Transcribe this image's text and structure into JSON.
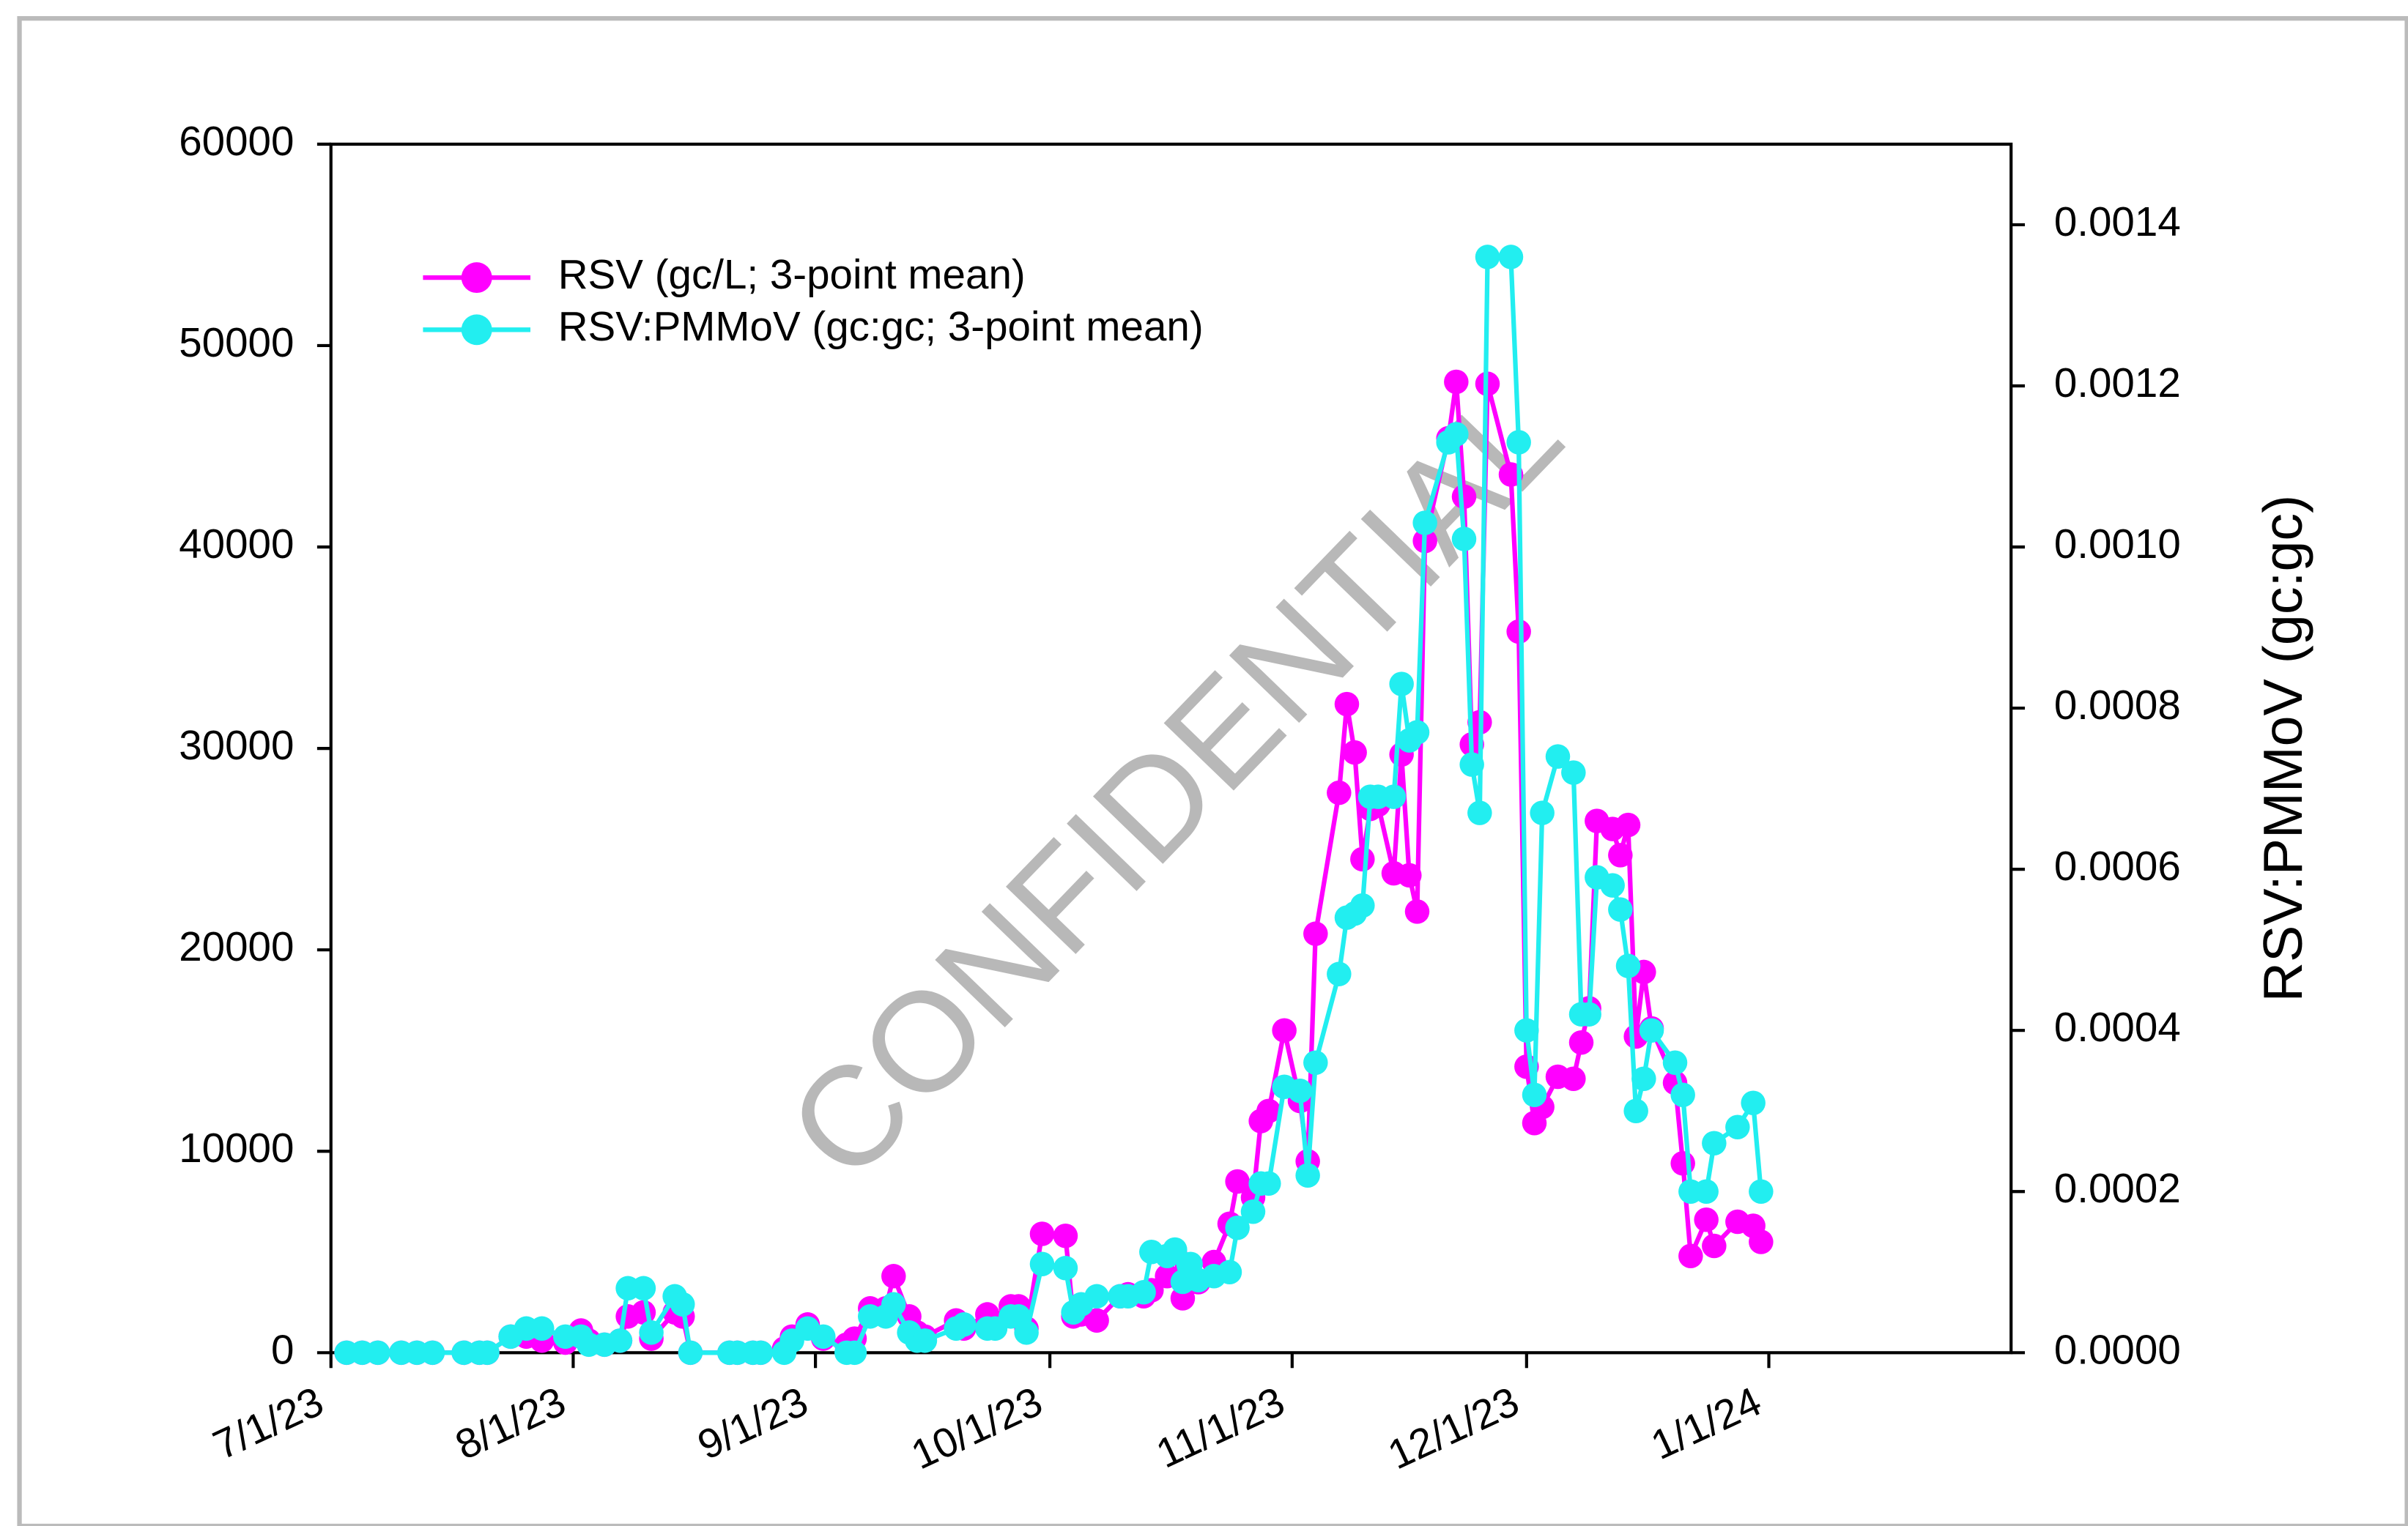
{
  "chart_data": {
    "type": "line",
    "watermark": "CONFIDENTIAL",
    "y2_label": "RSV:PMMoV (gc:gc)",
    "legend": "upper left",
    "x": [
      "2023-07-03",
      "2023-07-05",
      "2023-07-07",
      "2023-07-10",
      "2023-07-12",
      "2023-07-14",
      "2023-07-18",
      "2023-07-20",
      "2023-07-21",
      "2023-07-24",
      "2023-07-26",
      "2023-07-28",
      "2023-07-31",
      "2023-08-02",
      "2023-08-03",
      "2023-08-05",
      "2023-08-07",
      "2023-08-08",
      "2023-08-10",
      "2023-08-11",
      "2023-08-14",
      "2023-08-15",
      "2023-08-16",
      "2023-08-21",
      "2023-08-22",
      "2023-08-24",
      "2023-08-25",
      "2023-08-28",
      "2023-08-29",
      "2023-08-31",
      "2023-09-02",
      "2023-09-05",
      "2023-09-06",
      "2023-09-08",
      "2023-09-10",
      "2023-09-11",
      "2023-09-13",
      "2023-09-14",
      "2023-09-15",
      "2023-09-19",
      "2023-09-20",
      "2023-09-23",
      "2023-09-24",
      "2023-09-26",
      "2023-09-27",
      "2023-09-28",
      "2023-09-30",
      "2023-10-03",
      "2023-10-04",
      "2023-10-05",
      "2023-10-07",
      "2023-10-10",
      "2023-10-11",
      "2023-10-13",
      "2023-10-14",
      "2023-10-16",
      "2023-10-17",
      "2023-10-18",
      "2023-10-19",
      "2023-10-20",
      "2023-10-22",
      "2023-10-24",
      "2023-10-25",
      "2023-10-27",
      "2023-10-28",
      "2023-10-29",
      "2023-10-31",
      "2023-11-02",
      "2023-11-03",
      "2023-11-04",
      "2023-11-07",
      "2023-11-08",
      "2023-11-09",
      "2023-11-10",
      "2023-11-11",
      "2023-11-12",
      "2023-11-14",
      "2023-11-15",
      "2023-11-16",
      "2023-11-17",
      "2023-11-18",
      "2023-11-21",
      "2023-11-22",
      "2023-11-23",
      "2023-11-24",
      "2023-11-25",
      "2023-11-26",
      "2023-11-29",
      "2023-11-30",
      "2023-12-01",
      "2023-12-02",
      "2023-12-03",
      "2023-12-05",
      "2023-12-07",
      "2023-12-08",
      "2023-12-09",
      "2023-12-10",
      "2023-12-12",
      "2023-12-13",
      "2023-12-14",
      "2023-12-15",
      "2023-12-16",
      "2023-12-17",
      "2023-12-20",
      "2023-12-21",
      "2023-12-22",
      "2023-12-24",
      "2023-12-25",
      "2023-12-28",
      "2023-12-30",
      "2023-12-31"
    ],
    "series": [
      {
        "name": "RSV (gc/L; 3-point mean)",
        "color": "#ff00ff",
        "values": [
          0,
          0,
          0,
          0,
          0,
          0,
          0,
          0,
          0,
          800,
          800,
          600,
          500,
          1100,
          600,
          400,
          600,
          1800,
          2000,
          700,
          2000,
          1800,
          0,
          0,
          0,
          0,
          0,
          200,
          800,
          1400,
          700,
          400,
          700,
          2200,
          2200,
          3800,
          1800,
          1000,
          800,
          1600,
          1200,
          1900,
          1500,
          2300,
          2300,
          1200,
          5900,
          5800,
          1800,
          1900,
          1600,
          2800,
          2900,
          2800,
          3100,
          3800,
          5000,
          2700,
          3500,
          3500,
          4500,
          6400,
          8500,
          7700,
          11500,
          12000,
          16000,
          12500,
          9500,
          20800,
          27800,
          32200,
          29800,
          24500,
          27000,
          27200,
          23800,
          29700,
          23700,
          21900,
          40300,
          45400,
          48200,
          42500,
          30200,
          31300,
          48100,
          43600,
          35800,
          14200,
          11400,
          12200,
          13700,
          13600,
          15400,
          17100,
          26400,
          26000,
          24700,
          26200,
          15700,
          18900,
          16100,
          13400,
          9400,
          4800,
          6600,
          5300,
          6500,
          6300,
          5500
        ]
      },
      {
        "name": "RSV:PMMoV (gc:gc; 3-point mean)",
        "color": "#22eef0",
        "axis": "y2",
        "values": [
          0,
          0,
          0,
          0,
          0,
          0,
          0,
          0,
          0,
          2e-05,
          3e-05,
          3e-05,
          2e-05,
          2e-05,
          1e-05,
          1e-05,
          1.5e-05,
          8e-05,
          8e-05,
          2.5e-05,
          7e-05,
          6e-05,
          0,
          0,
          0,
          0,
          0,
          0,
          1.5e-05,
          3e-05,
          2e-05,
          0,
          0,
          4.5e-05,
          4.5e-05,
          6e-05,
          2.5e-05,
          1.5e-05,
          1.5e-05,
          3e-05,
          3.5e-05,
          3e-05,
          3e-05,
          4.5e-05,
          4.5e-05,
          2.5e-05,
          0.00011,
          0.000105,
          5e-05,
          6e-05,
          7e-05,
          7e-05,
          7e-05,
          7.5e-05,
          0.000125,
          0.00012,
          0.000128,
          8.8e-05,
          0.00011,
          9e-05,
          9.5e-05,
          0.0001,
          0.000155,
          0.000175,
          0.00021,
          0.00021,
          0.00033,
          0.000325,
          0.00022,
          0.00036,
          0.00047,
          0.00054,
          0.000545,
          0.000555,
          0.00069,
          0.00069,
          0.00069,
          0.00083,
          0.00076,
          0.00077,
          0.00103,
          0.00113,
          0.00114,
          0.00101,
          0.00073,
          0.00067,
          0.00136,
          0.00136,
          0.00113,
          0.0004,
          0.00032,
          0.00067,
          0.00074,
          0.00072,
          0.00042,
          0.00042,
          0.00059,
          0.00058,
          0.00055,
          0.00048,
          0.0003,
          0.00034,
          0.0004,
          0.00036,
          0.00032,
          0.0002,
          0.0002,
          0.00026,
          0.00028,
          0.00031,
          0.0002
        ]
      }
    ],
    "xlim": [
      "2023-07-01",
      "2024-02-01"
    ],
    "xticks": [
      {
        "value": "2023-07-01",
        "label": "7/1/23"
      },
      {
        "value": "2023-08-01",
        "label": "8/1/23"
      },
      {
        "value": "2023-09-01",
        "label": "9/1/23"
      },
      {
        "value": "2023-10-01",
        "label": "10/1/23"
      },
      {
        "value": "2023-11-01",
        "label": "11/1/23"
      },
      {
        "value": "2023-12-01",
        "label": "12/1/23"
      },
      {
        "value": "2024-01-01",
        "label": "1/1/24"
      }
    ],
    "ylim": [
      0,
      60000
    ],
    "yticks": [
      0,
      10000,
      20000,
      30000,
      40000,
      50000,
      60000
    ],
    "y2lim": [
      0,
      0.0015
    ],
    "y2ticks": [
      {
        "value": 0,
        "label": "0.0000"
      },
      {
        "value": 0.0002,
        "label": "0.0002"
      },
      {
        "value": 0.0004,
        "label": "0.0004"
      },
      {
        "value": 0.0006,
        "label": "0.0006"
      },
      {
        "value": 0.0008,
        "label": "0.0008"
      },
      {
        "value": 0.001,
        "label": "0.0010"
      },
      {
        "value": 0.0012,
        "label": "0.0012"
      },
      {
        "value": 0.0014,
        "label": "0.0014"
      }
    ]
  }
}
